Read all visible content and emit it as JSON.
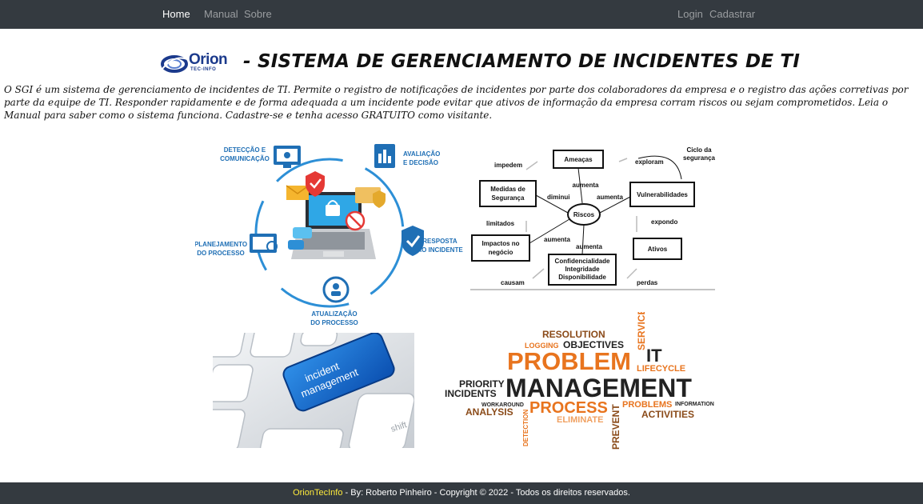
{
  "nav": {
    "home": "Home",
    "manual": "Manual",
    "sobre": "Sobre",
    "login": "Login",
    "cadastrar": "Cadastrar"
  },
  "logo": {
    "name": "Orion",
    "sub": "TEC-INFO"
  },
  "page_title": "- SISTEMA DE GERENCIAMENTO DE INCIDENTES DE TI",
  "intro": "O SGI é um sistema de gerenciamento de incidentes de TI. Permite o registro de notificações de incidentes por parte dos colaboradores da empresa e o registro das ações corretivas por parte da equipe de TI. Responder rapidamente e de forma adequada a um incidente pode evitar que ativos de informação da empresa corram riscos ou sejam comprometidos. Leia o Manual para saber como o sistema funciona. Cadastre-se e tenha acesso GRATUITO como visitante.",
  "cycle": {
    "deteccao_1": "DETECÇÃO E",
    "deteccao_2": "COMUNICAÇÃO",
    "avaliacao_1": "AVALIAÇÃO",
    "avaliacao_2": "E DECISÃO",
    "planejamento_1": "PLANEJAMENTO",
    "planejamento_2": "DO PROCESSO",
    "resposta_1": "RESPOSTA",
    "resposta_2": "AO INCIDENTE",
    "atualizacao_1": "ATUALIZAÇÃO",
    "atualizacao_2": "DO PROCESSO"
  },
  "security_diagram": {
    "ameacas": "Ameaças",
    "vulnerabilidades": "Vulnerabilidades",
    "medidas_1": "Medidas de",
    "medidas_2": "Segurança",
    "riscos": "Riscos",
    "impactos_1": "Impactos no",
    "impactos_2": "negócio",
    "ativos": "Ativos",
    "cid_1": "Confidencialidade",
    "cid_2": "Integridade",
    "cid_3": "Disponibilidade",
    "impedem": "impedem",
    "exploram": "exploram",
    "ciclo_1": "Ciclo da",
    "ciclo_2": "segurança",
    "aumenta_top": "aumenta",
    "diminui": "diminui",
    "aumenta_right": "aumenta",
    "limitados": "limitados",
    "expondo": "expondo",
    "aumenta_left": "aumenta",
    "aumenta_bottom": "aumenta",
    "causam": "causam",
    "perdas": "perdas"
  },
  "keyboard": {
    "key_1": "incident",
    "key_2": "management",
    "shift": "shift"
  },
  "wordcloud": {
    "resolution": "RESOLUTION",
    "logging": "LOGGING",
    "objectives": "OBJECTIVES",
    "service": "SERVICE",
    "problem": "PROBLEM",
    "it": "IT",
    "lifecycle": "LIFECYCLE",
    "priority": "PRIORITY",
    "incidents": "INCIDENTS",
    "management": "MANAGEMENT",
    "workaround": "WORKAROUND",
    "analysis": "ANALYSIS",
    "process": "PROCESS",
    "problems": "PROBLEMS",
    "information": "INFORMATION",
    "activities": "ACTIVITIES",
    "detection": "DETECTION",
    "eliminate": "ELIMINATE",
    "prevent": "PREVENT"
  },
  "footer": {
    "brand": "OrionTecInfo",
    "text": " - By: Roberto Pinheiro - Copyright © 2022 - Todos os direitos reservados."
  },
  "colors": {
    "navbar": "#343a40",
    "accent_blue": "#1f6fb5",
    "wordcloud_orange": "#e8741e",
    "wordcloud_dark": "#222222",
    "wordcloud_brown": "#8a4a18",
    "footer_brand": "#ffeb3b"
  }
}
